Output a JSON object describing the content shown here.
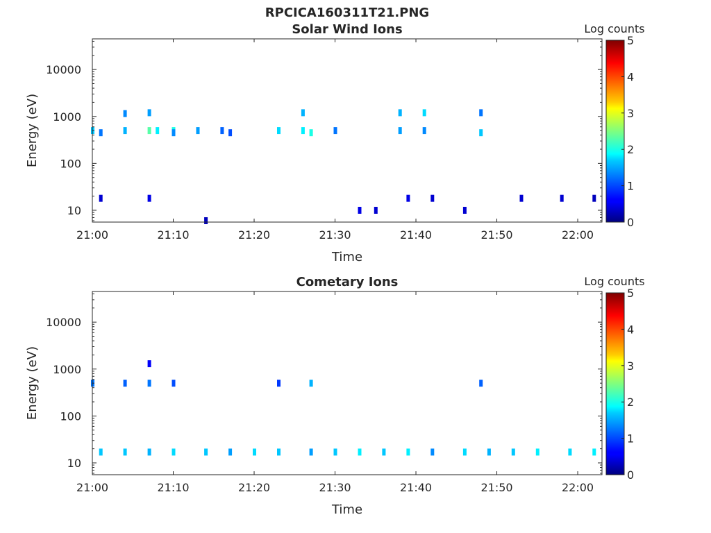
{
  "figure_title": "RPCICA160311T21.PNG",
  "colorbar": {
    "label": "Log counts",
    "min": 0,
    "max": 5,
    "ticks": [
      "0",
      "1",
      "2",
      "3",
      "4",
      "5"
    ],
    "colormap": "jet"
  },
  "chart_data": [
    {
      "type": "heatmap",
      "title": "Solar Wind Ions",
      "xlabel": "Time",
      "ylabel": "Energy (eV)",
      "yscale": "log",
      "ylim": [
        5.6,
        45000
      ],
      "xlim": [
        "21:00",
        "22:03"
      ],
      "xticks": [
        "21:00",
        "21:10",
        "21:20",
        "21:30",
        "21:40",
        "21:50",
        "22:00"
      ],
      "yticks": [
        "10",
        "100",
        "1000",
        "10000"
      ],
      "points": [
        {
          "t": "21:00",
          "e": 500,
          "v": 1.6
        },
        {
          "t": "21:01",
          "e": 450,
          "v": 1.2
        },
        {
          "t": "21:04",
          "e": 500,
          "v": 1.5
        },
        {
          "t": "21:04",
          "e": 1150,
          "v": 1.3
        },
        {
          "t": "21:07",
          "e": 500,
          "v": 2.3
        },
        {
          "t": "21:07",
          "e": 1200,
          "v": 1.4
        },
        {
          "t": "21:08",
          "e": 500,
          "v": 1.8
        },
        {
          "t": "21:10",
          "e": 500,
          "v": 2.0
        },
        {
          "t": "21:10",
          "e": 450,
          "v": 1.3
        },
        {
          "t": "21:13",
          "e": 500,
          "v": 1.4
        },
        {
          "t": "21:16",
          "e": 500,
          "v": 1.1
        },
        {
          "t": "21:17",
          "e": 450,
          "v": 1.0
        },
        {
          "t": "21:23",
          "e": 500,
          "v": 1.7
        },
        {
          "t": "21:26",
          "e": 500,
          "v": 1.8
        },
        {
          "t": "21:26",
          "e": 1200,
          "v": 1.5
        },
        {
          "t": "21:27",
          "e": 450,
          "v": 2.0
        },
        {
          "t": "21:30",
          "e": 500,
          "v": 1.2
        },
        {
          "t": "21:38",
          "e": 500,
          "v": 1.4
        },
        {
          "t": "21:38",
          "e": 1200,
          "v": 1.5
        },
        {
          "t": "21:41",
          "e": 1200,
          "v": 1.7
        },
        {
          "t": "21:41",
          "e": 500,
          "v": 1.3
        },
        {
          "t": "21:48",
          "e": 1200,
          "v": 1.2
        },
        {
          "t": "21:48",
          "e": 450,
          "v": 1.6
        },
        {
          "t": "21:01",
          "e": 18,
          "v": 0.4
        },
        {
          "t": "21:07",
          "e": 18,
          "v": 0.5
        },
        {
          "t": "21:14",
          "e": 6,
          "v": 0.3
        },
        {
          "t": "21:33",
          "e": 10,
          "v": 0.5
        },
        {
          "t": "21:35",
          "e": 10,
          "v": 0.4
        },
        {
          "t": "21:39",
          "e": 18,
          "v": 0.5
        },
        {
          "t": "21:42",
          "e": 18,
          "v": 0.4
        },
        {
          "t": "21:46",
          "e": 10,
          "v": 0.4
        },
        {
          "t": "21:53",
          "e": 18,
          "v": 0.4
        },
        {
          "t": "21:58",
          "e": 18,
          "v": 0.4
        },
        {
          "t": "22:02",
          "e": 18,
          "v": 0.3
        }
      ]
    },
    {
      "type": "heatmap",
      "title": "Cometary Ions",
      "xlabel": "Time",
      "ylabel": "Energy (eV)",
      "yscale": "log",
      "ylim": [
        5.6,
        45000
      ],
      "xlim": [
        "21:00",
        "22:03"
      ],
      "xticks": [
        "21:00",
        "21:10",
        "21:20",
        "21:30",
        "21:40",
        "21:50",
        "22:00"
      ],
      "yticks": [
        "10",
        "100",
        "1000",
        "10000"
      ],
      "points": [
        {
          "t": "21:01",
          "e": 17,
          "v": 1.6
        },
        {
          "t": "21:04",
          "e": 17,
          "v": 1.6
        },
        {
          "t": "21:07",
          "e": 17,
          "v": 1.5
        },
        {
          "t": "21:10",
          "e": 17,
          "v": 1.7
        },
        {
          "t": "21:14",
          "e": 17,
          "v": 1.6
        },
        {
          "t": "21:17",
          "e": 17,
          "v": 1.4
        },
        {
          "t": "21:20",
          "e": 17,
          "v": 1.7
        },
        {
          "t": "21:23",
          "e": 17,
          "v": 1.6
        },
        {
          "t": "21:27",
          "e": 17,
          "v": 1.4
        },
        {
          "t": "21:30",
          "e": 17,
          "v": 1.6
        },
        {
          "t": "21:33",
          "e": 17,
          "v": 1.8
        },
        {
          "t": "21:36",
          "e": 17,
          "v": 1.6
        },
        {
          "t": "21:39",
          "e": 17,
          "v": 1.8
        },
        {
          "t": "21:42",
          "e": 17,
          "v": 1.3
        },
        {
          "t": "21:46",
          "e": 17,
          "v": 1.7
        },
        {
          "t": "21:49",
          "e": 17,
          "v": 1.5
        },
        {
          "t": "21:52",
          "e": 17,
          "v": 1.6
        },
        {
          "t": "21:55",
          "e": 17,
          "v": 1.8
        },
        {
          "t": "21:59",
          "e": 17,
          "v": 1.7
        },
        {
          "t": "22:02",
          "e": 17,
          "v": 1.8
        },
        {
          "t": "21:00",
          "e": 500,
          "v": 1.2
        },
        {
          "t": "21:04",
          "e": 500,
          "v": 1.1
        },
        {
          "t": "21:07",
          "e": 500,
          "v": 1.2
        },
        {
          "t": "21:10",
          "e": 500,
          "v": 1.0
        },
        {
          "t": "21:23",
          "e": 500,
          "v": 0.9
        },
        {
          "t": "21:27",
          "e": 500,
          "v": 1.5
        },
        {
          "t": "21:48",
          "e": 500,
          "v": 1.1
        },
        {
          "t": "21:07",
          "e": 1300,
          "v": 0.6
        }
      ]
    }
  ]
}
